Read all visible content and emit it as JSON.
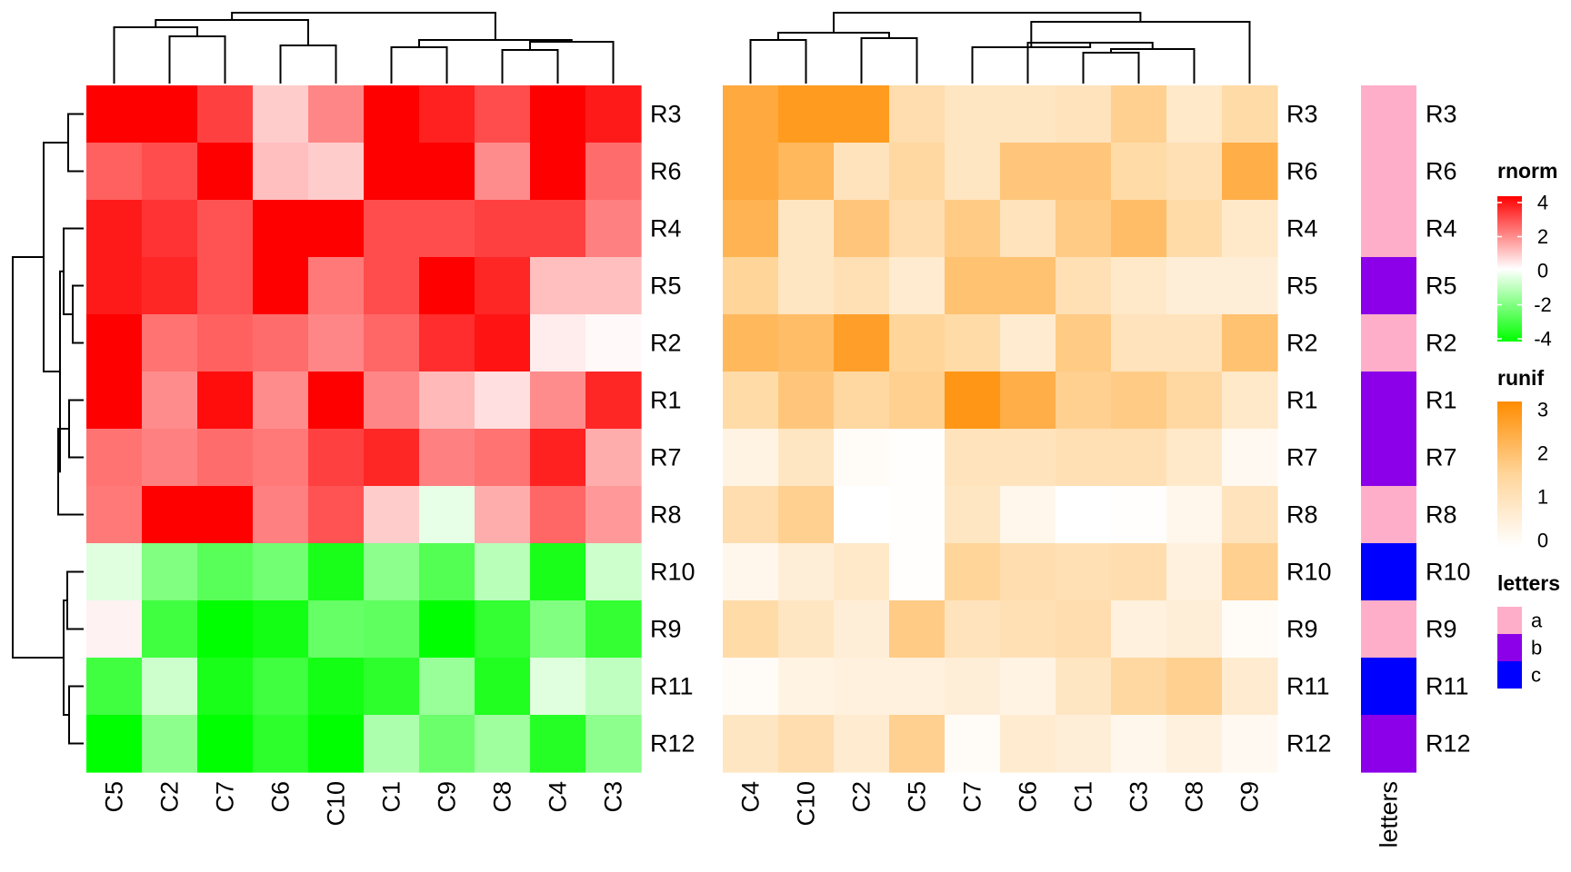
{
  "chart_data": {
    "type": "heatmap",
    "rows": [
      "R3",
      "R6",
      "R4",
      "R5",
      "R2",
      "R1",
      "R7",
      "R8",
      "R10",
      "R9",
      "R11",
      "R12"
    ],
    "heatmaps": [
      {
        "name": "rnorm",
        "columns": [
          "C5",
          "C2",
          "C7",
          "C6",
          "C10",
          "C1",
          "C9",
          "C8",
          "C4",
          "C3"
        ],
        "colors": {
          "low": "#00ff00",
          "mid": "#ffffff",
          "high": "#ff0000"
        },
        "range": [
          -4,
          4
        ],
        "values": [
          [
            4.2,
            4.4,
            3.0,
            0.8,
            1.9,
            4.5,
            3.5,
            2.8,
            4.1,
            3.6
          ],
          [
            2.5,
            2.8,
            4.3,
            1.0,
            0.8,
            4.5,
            4.5,
            1.8,
            4.3,
            2.3
          ],
          [
            3.6,
            3.2,
            2.7,
            4.5,
            4.5,
            2.8,
            2.8,
            3.0,
            3.0,
            2.0
          ],
          [
            3.6,
            3.4,
            2.7,
            4.4,
            2.1,
            2.8,
            4.2,
            3.4,
            1.0,
            1.0
          ],
          [
            4.3,
            2.2,
            2.5,
            2.3,
            1.9,
            2.4,
            3.3,
            3.7,
            0.3,
            0.1
          ],
          [
            4.3,
            1.8,
            3.8,
            1.8,
            4.3,
            1.9,
            1.1,
            0.5,
            1.8,
            3.4
          ],
          [
            2.2,
            2.0,
            2.3,
            2.1,
            3.0,
            3.4,
            2.0,
            2.2,
            3.5,
            1.3
          ],
          [
            2.1,
            4.3,
            4.3,
            2.0,
            2.7,
            0.8,
            -0.4,
            1.3,
            2.4,
            1.6
          ],
          [
            -0.5,
            -2.0,
            -2.6,
            -2.2,
            -3.6,
            -1.8,
            -2.7,
            -1.1,
            -3.6,
            -0.8
          ],
          [
            0.2,
            -3.0,
            -4.0,
            -3.7,
            -2.4,
            -2.5,
            -4.5,
            -3.2,
            -2.0,
            -3.2
          ],
          [
            -3.0,
            -0.8,
            -3.6,
            -3.0,
            -3.7,
            -3.3,
            -1.6,
            -3.5,
            -0.5,
            -1.0
          ],
          [
            -4.3,
            -1.8,
            -4.2,
            -3.3,
            -4.4,
            -1.3,
            -2.3,
            -1.5,
            -3.4,
            -1.8
          ]
        ]
      },
      {
        "name": "runif",
        "columns": [
          "C4",
          "C10",
          "C2",
          "C5",
          "C7",
          "C6",
          "C1",
          "C3",
          "C8",
          "C9"
        ],
        "colors": {
          "low": "#ffffff",
          "mid": "#ffd59a",
          "high": "#ff8c00"
        },
        "range": [
          0,
          3
        ],
        "values": [
          [
            2.4,
            2.7,
            2.7,
            1.2,
            0.9,
            0.9,
            1.0,
            1.6,
            0.8,
            1.3
          ],
          [
            2.4,
            2.1,
            1.0,
            1.4,
            0.9,
            1.8,
            1.8,
            1.3,
            1.1,
            2.3
          ],
          [
            2.2,
            0.9,
            1.8,
            1.2,
            1.7,
            1.0,
            1.7,
            2.0,
            1.3,
            0.8
          ],
          [
            1.5,
            0.9,
            1.1,
            0.7,
            1.9,
            1.9,
            1.1,
            0.8,
            0.6,
            0.6
          ],
          [
            2.1,
            2.0,
            2.6,
            1.5,
            1.3,
            0.7,
            1.7,
            1.0,
            1.0,
            1.9
          ],
          [
            1.3,
            1.8,
            1.4,
            1.6,
            2.8,
            2.3,
            1.6,
            1.7,
            1.4,
            0.8
          ],
          [
            0.4,
            0.9,
            0.1,
            0.05,
            1.0,
            1.0,
            1.1,
            1.1,
            0.8,
            0.2
          ],
          [
            1.2,
            1.6,
            0.0,
            0.05,
            0.9,
            0.3,
            0.0,
            0.05,
            0.3,
            1.0
          ],
          [
            0.3,
            0.6,
            0.8,
            0.05,
            1.5,
            1.2,
            1.1,
            1.2,
            0.5,
            1.6
          ],
          [
            1.3,
            0.9,
            0.6,
            1.7,
            1.0,
            1.1,
            1.2,
            0.5,
            0.6,
            0.1
          ],
          [
            0.1,
            0.4,
            0.5,
            0.5,
            0.6,
            0.4,
            0.9,
            1.4,
            1.6,
            0.7
          ],
          [
            0.9,
            1.2,
            0.7,
            1.6,
            0.1,
            0.7,
            0.6,
            0.3,
            0.5,
            0.2
          ]
        ]
      }
    ],
    "annotation": {
      "name": "letters",
      "values": [
        "a",
        "a",
        "a",
        "b",
        "a",
        "b",
        "b",
        "a",
        "c",
        "a",
        "c",
        "b"
      ],
      "colors": {
        "a": "#ffaec9",
        "b": "#8b00e8",
        "c": "#0000ff"
      }
    },
    "legends": [
      {
        "title": "rnorm",
        "ticks": [
          "4",
          "2",
          "0",
          "-2",
          "-4"
        ]
      },
      {
        "title": "runif",
        "ticks": [
          "3",
          "2",
          "1",
          "0"
        ]
      },
      {
        "title": "letters",
        "items": [
          "a",
          "b",
          "c"
        ]
      }
    ],
    "grid": false,
    "legend_position": "right"
  }
}
